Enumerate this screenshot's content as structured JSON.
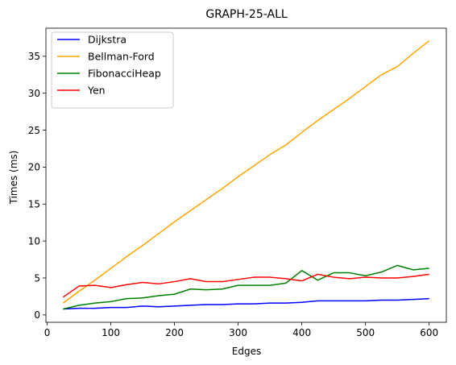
{
  "chart_data": {
    "type": "line",
    "title": "GRAPH-25-ALL",
    "xlabel": "Edges",
    "ylabel": "Times (ms)",
    "xlim": [
      -2,
      627
    ],
    "ylim": [
      -1.0,
      38.8
    ],
    "xticks": [
      0,
      100,
      200,
      300,
      400,
      500,
      600
    ],
    "yticks": [
      0,
      5,
      10,
      15,
      20,
      25,
      30,
      35
    ],
    "legend_position": "top-left",
    "grid": false,
    "x": [
      25,
      50,
      75,
      100,
      125,
      150,
      175,
      200,
      225,
      250,
      275,
      300,
      325,
      350,
      375,
      400,
      425,
      450,
      475,
      500,
      525,
      550,
      575,
      600
    ],
    "series": [
      {
        "name": "Dijkstra",
        "color": "#0000ff",
        "values": [
          0.8,
          0.9,
          0.9,
          1.0,
          1.0,
          1.2,
          1.1,
          1.2,
          1.3,
          1.4,
          1.4,
          1.5,
          1.5,
          1.6,
          1.6,
          1.7,
          1.9,
          1.9,
          1.9,
          1.9,
          2.0,
          2.0,
          2.1,
          2.2
        ]
      },
      {
        "name": "Bellman-Ford",
        "color": "#ffa500",
        "values": [
          1.6,
          3.2,
          4.7,
          6.3,
          7.9,
          9.4,
          11.0,
          12.6,
          14.1,
          15.6,
          17.1,
          18.7,
          20.2,
          21.7,
          23.0,
          24.7,
          26.3,
          27.8,
          29.3,
          30.9,
          32.5,
          33.6,
          35.4,
          37.1
        ]
      },
      {
        "name": "FibonacciHeap",
        "color": "#008000",
        "values": [
          0.8,
          1.3,
          1.6,
          1.8,
          2.2,
          2.3,
          2.6,
          2.8,
          3.5,
          3.4,
          3.5,
          4.0,
          4.0,
          4.0,
          4.3,
          6.0,
          4.7,
          5.7,
          5.7,
          5.3,
          5.8,
          6.7,
          6.1,
          6.3
        ]
      },
      {
        "name": "Yen",
        "color": "#ff0000",
        "values": [
          2.4,
          3.9,
          4.0,
          3.7,
          4.1,
          4.4,
          4.2,
          4.5,
          4.9,
          4.5,
          4.5,
          4.8,
          5.1,
          5.1,
          4.9,
          4.6,
          5.5,
          5.1,
          4.9,
          5.1,
          5.0,
          5.0,
          5.2,
          5.5
        ]
      }
    ]
  }
}
